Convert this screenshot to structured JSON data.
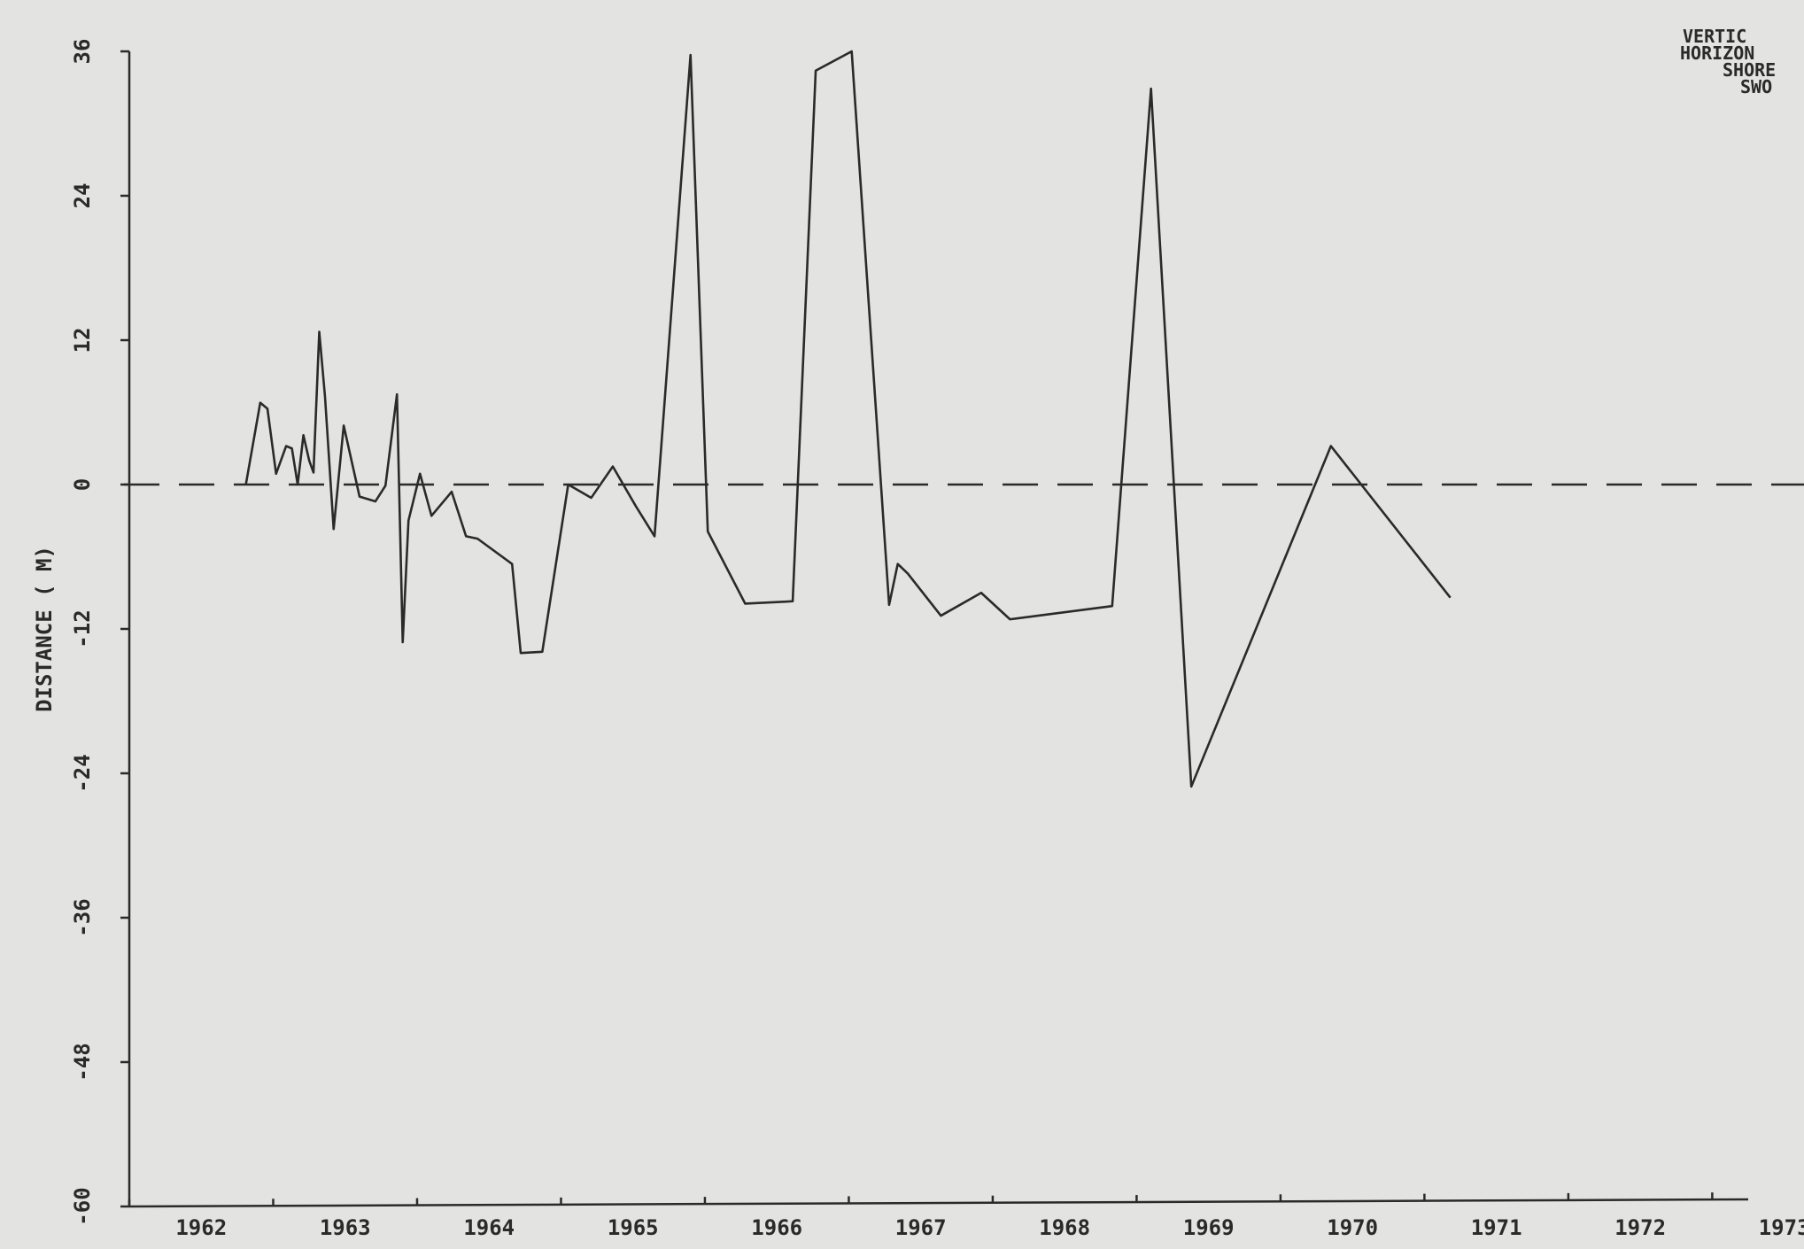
{
  "chart_data": {
    "type": "line",
    "y_label": "DISTANCE ( M)",
    "annotations": [
      "VERTIC",
      "HORIZON",
      "SHORE",
      "SWO"
    ],
    "xlim": [
      1962,
      1973.25
    ],
    "xticks": [
      1962,
      1963,
      1964,
      1965,
      1966,
      1967,
      1968,
      1969,
      1970,
      1971,
      1972,
      1973
    ],
    "ylim": [
      -60,
      36
    ],
    "yticks": [
      36,
      24,
      12,
      0,
      -12,
      -24,
      -36,
      -48,
      -60
    ],
    "reference_line": 0,
    "series": [
      {
        "color": "#2a2a2a",
        "x": [
          1962.81,
          1962.91,
          1962.96,
          1963.02,
          1963.09,
          1963.13,
          1963.17,
          1963.21,
          1963.25,
          1963.28,
          1963.32,
          1963.36,
          1963.42,
          1963.49,
          1963.6,
          1963.71,
          1963.78,
          1963.86,
          1963.9,
          1963.94,
          1964.02,
          1964.1,
          1964.24,
          1964.34,
          1964.42,
          1964.66,
          1964.72,
          1964.87,
          1965.05,
          1965.21,
          1965.36,
          1965.52,
          1965.65,
          1965.9,
          1966.02,
          1966.28,
          1966.61,
          1966.77,
          1967.02,
          1967.28,
          1967.34,
          1967.41,
          1967.64,
          1967.92,
          1968.12,
          1968.83,
          1969.1,
          1969.38,
          1970.35,
          1971.18
        ],
        "values": [
          0,
          6.8,
          6.3,
          0.9,
          3.2,
          3,
          0,
          4.1,
          2,
          1,
          12.7,
          7.3,
          -3.7,
          4.9,
          -1,
          -1.4,
          -0.1,
          7.5,
          -13.1,
          -3,
          0.9,
          -2.6,
          -0.6,
          -4.3,
          -4.5,
          -6.6,
          -14,
          -13.9,
          0,
          -1.1,
          1.5,
          -1.8,
          -4.3,
          35.7,
          -3.9,
          -9.9,
          -9.7,
          34.4,
          36,
          -10,
          -6.6,
          -7.4,
          -10.9,
          -9,
          -11.2,
          -10.1,
          32.9,
          -25.1,
          3.2,
          -9.4
        ]
      }
    ]
  }
}
